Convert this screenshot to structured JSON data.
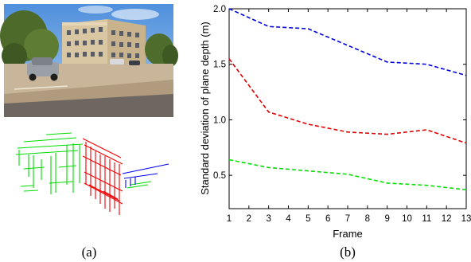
{
  "captions": {
    "a": "(a)",
    "b": "(b)"
  },
  "chart_data": {
    "type": "line",
    "xlabel": "Frame",
    "ylabel": "Standard deviation of plane depth (m)",
    "xlim": [
      1,
      13
    ],
    "ylim": [
      0.2,
      2.0
    ],
    "xticks": [
      "1",
      "2",
      "3",
      "4",
      "5",
      "6",
      "7",
      "8",
      "9",
      "10",
      "11",
      "12",
      "13"
    ],
    "yticks": [
      "0.5",
      "1.0",
      "1.5",
      "2.0"
    ],
    "grid": false,
    "series": [
      {
        "color": "#0000e0",
        "style": "dashed",
        "x": [
          1,
          3,
          5,
          7,
          9,
          11,
          13
        ],
        "y": [
          2.0,
          1.84,
          1.82,
          1.67,
          1.52,
          1.5,
          1.4
        ]
      },
      {
        "color": "#e00000",
        "style": "dashed",
        "x": [
          1,
          3,
          5,
          7,
          9,
          11,
          13
        ],
        "y": [
          1.55,
          1.07,
          0.96,
          0.89,
          0.87,
          0.91,
          0.79
        ]
      },
      {
        "color": "#00e000",
        "style": "dashed",
        "x": [
          1,
          3,
          5,
          7,
          9,
          11,
          13
        ],
        "y": [
          0.64,
          0.57,
          0.54,
          0.51,
          0.43,
          0.41,
          0.37
        ]
      }
    ]
  }
}
